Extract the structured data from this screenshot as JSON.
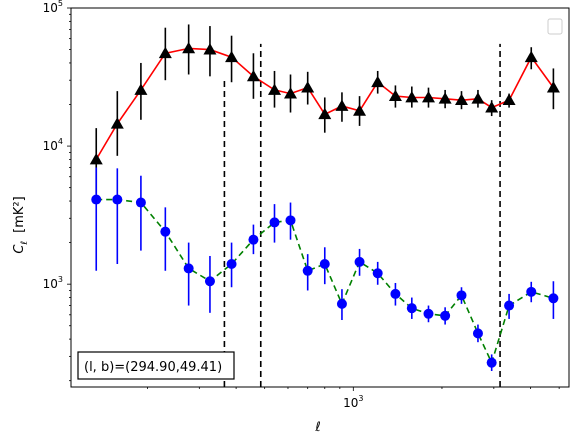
{
  "chart_data": {
    "type": "line",
    "xscale": "log",
    "yscale": "log",
    "xlim": [
      110,
      5400
    ],
    "ylim": [
      180,
      100000
    ],
    "xlabel": "ℓ",
    "ylabel_main": "C",
    "ylabel_sub": "ℓ",
    "ylabel_unit": "[mK²]",
    "x_ticks": [
      {
        "value": 1000,
        "base": "10",
        "exp": "3"
      }
    ],
    "y_ticks": [
      {
        "value": 1000,
        "base": "10",
        "exp": "3"
      },
      {
        "value": 10000,
        "base": "10",
        "exp": "4"
      },
      {
        "value": 100000,
        "base": "10",
        "exp": "5"
      }
    ],
    "annotation": "(l, b)=(294.90,49.41)",
    "legend": "top-right, empty",
    "vlines": [
      {
        "x": 365,
        "ymin": 180,
        "ymax": 30000
      },
      {
        "x": 485,
        "ymin": 180,
        "ymax": 55000
      },
      {
        "x": 3150,
        "ymin": 180,
        "ymax": 55000
      }
    ],
    "series": [
      {
        "color": "#ff0000",
        "linestyle": "solid",
        "marker": "triangle",
        "marker_color": "#000000",
        "errbar_color": "#000000",
        "points": [
          {
            "x": 134,
            "y": 8000,
            "lo": 4500,
            "hi": 13500
          },
          {
            "x": 158,
            "y": 14500,
            "lo": 8500,
            "hi": 25000
          },
          {
            "x": 190,
            "y": 25500,
            "lo": 15500,
            "hi": 40000
          },
          {
            "x": 230,
            "y": 47000,
            "lo": 30000,
            "hi": 72000
          },
          {
            "x": 276,
            "y": 51000,
            "lo": 33000,
            "hi": 76000
          },
          {
            "x": 326,
            "y": 50000,
            "lo": 32000,
            "hi": 74000
          },
          {
            "x": 386,
            "y": 44000,
            "lo": 29000,
            "hi": 63000
          },
          {
            "x": 458,
            "y": 32000,
            "lo": 22000,
            "hi": 47000
          },
          {
            "x": 540,
            "y": 25500,
            "lo": 19000,
            "hi": 35000
          },
          {
            "x": 612,
            "y": 24000,
            "lo": 17500,
            "hi": 33000
          },
          {
            "x": 700,
            "y": 26500,
            "lo": 20000,
            "hi": 34500
          },
          {
            "x": 800,
            "y": 17000,
            "lo": 12500,
            "hi": 22500
          },
          {
            "x": 915,
            "y": 19500,
            "lo": 15000,
            "hi": 24500
          },
          {
            "x": 1050,
            "y": 18000,
            "lo": 14000,
            "hi": 23000
          },
          {
            "x": 1210,
            "y": 29000,
            "lo": 24000,
            "hi": 35000
          },
          {
            "x": 1390,
            "y": 23000,
            "lo": 19000,
            "hi": 27500
          },
          {
            "x": 1580,
            "y": 22500,
            "lo": 19000,
            "hi": 27000
          },
          {
            "x": 1800,
            "y": 22500,
            "lo": 19000,
            "hi": 26500
          },
          {
            "x": 2050,
            "y": 22000,
            "lo": 18800,
            "hi": 25500
          },
          {
            "x": 2330,
            "y": 21500,
            "lo": 18500,
            "hi": 25000
          },
          {
            "x": 2650,
            "y": 22000,
            "lo": 19000,
            "hi": 25500
          },
          {
            "x": 2950,
            "y": 19000,
            "lo": 16500,
            "hi": 21500
          },
          {
            "x": 3380,
            "y": 21500,
            "lo": 19000,
            "hi": 24000
          },
          {
            "x": 4020,
            "y": 44000,
            "lo": 36000,
            "hi": 52000
          },
          {
            "x": 4780,
            "y": 26500,
            "lo": 18500,
            "hi": 36500
          }
        ]
      },
      {
        "color": "#008000",
        "linestyle": "dashed",
        "marker": "circle",
        "marker_color": "#0000ff",
        "errbar_color": "#0000ff",
        "points": [
          {
            "x": 134,
            "y": 4100,
            "lo": 1250,
            "hi": 7000
          },
          {
            "x": 158,
            "y": 4100,
            "lo": 1400,
            "hi": 6900
          },
          {
            "x": 190,
            "y": 3900,
            "lo": 1750,
            "hi": 6100
          },
          {
            "x": 230,
            "y": 2400,
            "lo": 1250,
            "hi": 3600
          },
          {
            "x": 276,
            "y": 1300,
            "lo": 700,
            "hi": 2000
          },
          {
            "x": 326,
            "y": 1050,
            "lo": 620,
            "hi": 1600
          },
          {
            "x": 386,
            "y": 1400,
            "lo": 950,
            "hi": 2000
          },
          {
            "x": 458,
            "y": 2100,
            "lo": 1650,
            "hi": 2700
          },
          {
            "x": 540,
            "y": 2800,
            "lo": 2000,
            "hi": 3800
          },
          {
            "x": 612,
            "y": 2900,
            "lo": 2100,
            "hi": 3900
          },
          {
            "x": 700,
            "y": 1250,
            "lo": 900,
            "hi": 1650
          },
          {
            "x": 800,
            "y": 1400,
            "lo": 1000,
            "hi": 1850
          },
          {
            "x": 915,
            "y": 720,
            "lo": 550,
            "hi": 920
          },
          {
            "x": 1050,
            "y": 1450,
            "lo": 1150,
            "hi": 1800
          },
          {
            "x": 1210,
            "y": 1200,
            "lo": 990,
            "hi": 1450
          },
          {
            "x": 1390,
            "y": 850,
            "lo": 700,
            "hi": 1020
          },
          {
            "x": 1580,
            "y": 670,
            "lo": 560,
            "hi": 800
          },
          {
            "x": 1800,
            "y": 610,
            "lo": 530,
            "hi": 700
          },
          {
            "x": 2050,
            "y": 590,
            "lo": 510,
            "hi": 680
          },
          {
            "x": 2330,
            "y": 830,
            "lo": 720,
            "hi": 950
          },
          {
            "x": 2650,
            "y": 440,
            "lo": 380,
            "hi": 510
          },
          {
            "x": 2950,
            "y": 270,
            "lo": 235,
            "hi": 310
          },
          {
            "x": 3380,
            "y": 700,
            "lo": 560,
            "hi": 850
          },
          {
            "x": 4020,
            "y": 880,
            "lo": 740,
            "hi": 1040
          },
          {
            "x": 4780,
            "y": 790,
            "lo": 560,
            "hi": 1050
          }
        ]
      }
    ]
  }
}
